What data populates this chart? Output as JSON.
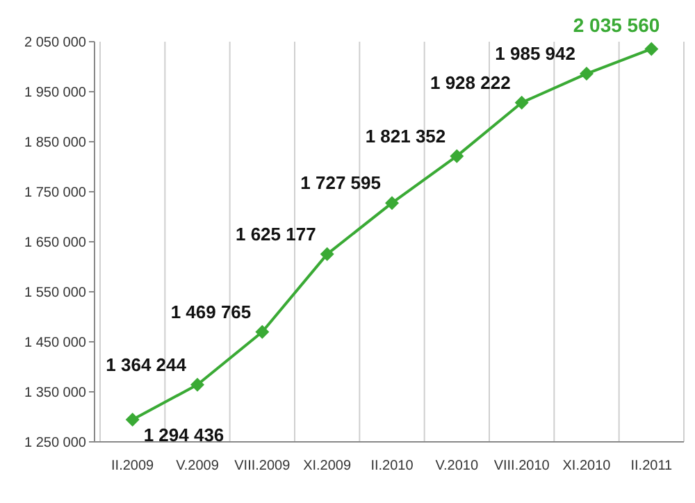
{
  "chart_data": {
    "type": "line",
    "categories": [
      "II.2009",
      "V.2009",
      "VIII.2009",
      "XI.2009",
      "II.2010",
      "V.2010",
      "VIII.2010",
      "XI.2010",
      "II.2011"
    ],
    "series": [
      {
        "color": "#3aaa35",
        "values": [
          1294436,
          1364244,
          1469765,
          1625177,
          1727595,
          1821352,
          1928222,
          1985942,
          2035560
        ],
        "value_labels": [
          "1 294 436",
          "1 364 244",
          "1 469 765",
          "1 625 177",
          "1 727 595",
          "1 821 352",
          "1 928 222",
          "1 985 942",
          "2 035 560"
        ]
      }
    ],
    "ylim": [
      1250000,
      2050000
    ],
    "yticks": [
      {
        "value": 1250000,
        "label": "1 250 000"
      },
      {
        "value": 1350000,
        "label": "1 350 000"
      },
      {
        "value": 1450000,
        "label": "1 450 000"
      },
      {
        "value": 1550000,
        "label": "1 550 000"
      },
      {
        "value": 1650000,
        "label": "1 650 000"
      },
      {
        "value": 1750000,
        "label": "1 750 000"
      },
      {
        "value": 1850000,
        "label": "1 850 000"
      },
      {
        "value": 1950000,
        "label": "1 950 000"
      },
      {
        "value": 2050000,
        "label": "2 050 000"
      }
    ],
    "grid": "x",
    "marker": "diamond",
    "line_style": "solid"
  }
}
